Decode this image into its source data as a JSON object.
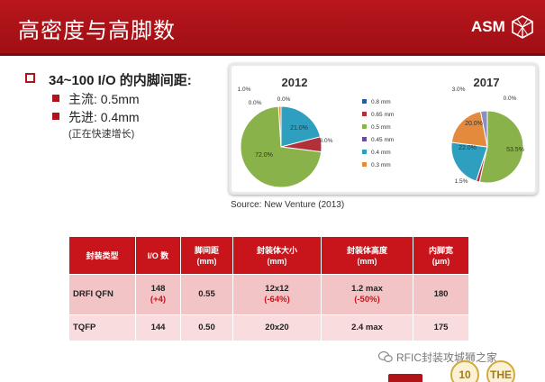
{
  "header": {
    "title": "高密度与高脚数",
    "logo_text": "ASM"
  },
  "bullets": {
    "main": "34~100 I/O 的内脚间距:",
    "item1": "主流: 0.5mm",
    "item2": "先进: 0.4mm",
    "note": "(正在快速增长)"
  },
  "chart_data": [
    {
      "type": "pie",
      "title": "2012",
      "slices": [
        {
          "label": "0.8 mm",
          "value": 0.0
        },
        {
          "label": "0.65 mm",
          "value": 6.0
        },
        {
          "label": "0.5 mm",
          "value": 72.0
        },
        {
          "label": "0.45 mm",
          "value": 0.0
        },
        {
          "label": "0.4 mm",
          "value": 21.0
        },
        {
          "label": "0.3 mm",
          "value": 1.0
        }
      ],
      "data_labels": [
        "1.0%",
        "0.0%",
        "0.0%",
        "21.0%",
        "6.0%",
        "72.0%"
      ]
    },
    {
      "type": "pie",
      "title": "2017",
      "slices": [
        {
          "label": "0.8 mm",
          "value": 0.0
        },
        {
          "label": "0.65 mm",
          "value": 1.5
        },
        {
          "label": "0.5 mm",
          "value": 53.5
        },
        {
          "label": "0.45 mm",
          "value": 0.0
        },
        {
          "label": "0.4 mm",
          "value": 22.0
        },
        {
          "label": "0.3 mm",
          "value": 20.0
        }
      ],
      "extra_slice": {
        "label": "",
        "value": 3.0
      },
      "data_labels": [
        "3.0%",
        "0.0%",
        "20.0%",
        "22.0%",
        "53.5%",
        "1.5%"
      ]
    }
  ],
  "legend": [
    {
      "label": "0.8 mm",
      "color": "#2a5d9f"
    },
    {
      "label": "0.65 mm",
      "color": "#b1303a"
    },
    {
      "label": "0.5 mm",
      "color": "#89b34a"
    },
    {
      "label": "0.45 mm",
      "color": "#6b4c9a"
    },
    {
      "label": "0.4 mm",
      "color": "#2f9fc0"
    },
    {
      "label": "0.3 mm",
      "color": "#e48a3c"
    }
  ],
  "source": "Source: New Venture (2013)",
  "table": {
    "headers": [
      "封装类型",
      "I/O 数",
      "脚间距\n(mm)",
      "封装体大小\n(mm)",
      "封装体高度\n(mm)",
      "内脚宽\n(μm)"
    ],
    "rows": [
      {
        "type": "DRFI QFN",
        "io": "148",
        "io_delta": "(+4)",
        "pitch": "0.55",
        "size": "12x12",
        "size_delta": "(-64%)",
        "height": "1.2 max",
        "height_delta": "(-50%)",
        "width": "180"
      },
      {
        "type": "TQFP",
        "io": "144",
        "io_delta": "",
        "pitch": "0.50",
        "size": "20x20",
        "size_delta": "",
        "height": "2.4 max",
        "height_delta": "",
        "width": "175"
      }
    ]
  },
  "footer": {
    "watermark": "RFIC封装攻城狮之家",
    "badge1": "10",
    "badge2": "THE"
  },
  "colors": {
    "brand_red": "#b8161c",
    "header_text": "#ffffff"
  }
}
